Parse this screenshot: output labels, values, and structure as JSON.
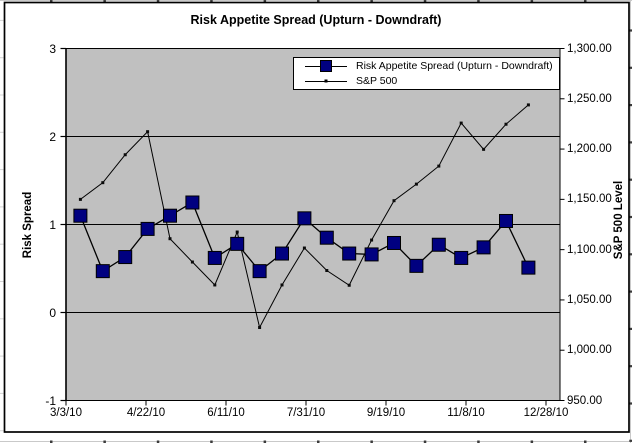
{
  "chart": {
    "title": "Risk Appetite Spread (Upturn - Downdraft)",
    "plot_bg_color": "#C0C0C0",
    "line_color": "#000000",
    "risk_marker_color": "#000080",
    "left_axis": {
      "title": "Risk Spread",
      "min": -1,
      "max": 3,
      "tick_labels": [
        "3",
        "2",
        "1",
        "0",
        "-1"
      ],
      "tick_values": [
        3,
        2,
        1,
        0,
        -1
      ]
    },
    "right_axis": {
      "title": "S&P 500 Level",
      "min": 950,
      "max": 1300,
      "tick_labels": [
        "1,300.00",
        "1,250.00",
        "1,200.00",
        "1,150.00",
        "1,100.00",
        "1,050.00",
        "1,000.00",
        "950.00"
      ],
      "tick_values": [
        1300,
        1250,
        1200,
        1150,
        1100,
        1050,
        1000,
        950
      ]
    },
    "x_axis": {
      "tick_labels": [
        "3/3/10",
        "4/22/10",
        "6/11/10",
        "7/31/10",
        "9/19/10",
        "11/8/10",
        "12/28/10"
      ]
    },
    "legend": {
      "items": [
        {
          "label": "Risk Appetite Spread (Upturn - Downdraft)",
          "marker": "navy-square-on-line"
        },
        {
          "label": "S&P 500",
          "marker": "thin-line-with-dot"
        }
      ]
    }
  },
  "chart_data": {
    "type": "line",
    "title": "Risk Appetite Spread (Upturn - Downdraft)",
    "x": [
      "3/12/10",
      "3/26/10",
      "4/9/10",
      "4/23/10",
      "5/7/10",
      "5/21/10",
      "6/4/10",
      "6/18/10",
      "7/2/10",
      "7/16/10",
      "7/30/10",
      "8/13/10",
      "8/27/10",
      "9/10/10",
      "9/24/10",
      "10/8/10",
      "10/22/10",
      "11/5/10",
      "11/19/10",
      "12/3/10",
      "12/17/10"
    ],
    "series": [
      {
        "name": "Risk Appetite Spread (Upturn - Downdraft)",
        "axis": "left",
        "marker": "square",
        "values": [
          1.1,
          0.47,
          0.63,
          0.95,
          1.1,
          1.25,
          0.62,
          0.78,
          0.47,
          0.67,
          1.07,
          0.85,
          0.67,
          0.66,
          0.79,
          0.53,
          0.77,
          0.62,
          0.74,
          1.04,
          0.51
        ]
      },
      {
        "name": "S&P 500",
        "axis": "right",
        "marker": "dot",
        "values": [
          1149.99,
          1166.59,
          1194.37,
          1217.28,
          1110.88,
          1087.69,
          1064.88,
          1117.51,
          1022.58,
          1064.88,
          1101.6,
          1079.25,
          1064.59,
          1109.55,
          1148.67,
          1165.15,
          1183.08,
          1225.85,
          1199.73,
          1224.71,
          1243.91
        ]
      }
    ],
    "xlabel": "",
    "ylabel_left": "Risk Spread",
    "ylabel_right": "S&P 500 Level",
    "ylim_left": [
      -1,
      3
    ],
    "ylim_right": [
      950,
      1300
    ],
    "xtick_labels": [
      "3/3/10",
      "4/22/10",
      "6/11/10",
      "7/31/10",
      "9/19/10",
      "11/8/10",
      "12/28/10"
    ],
    "grid": "horizontal-major",
    "legend_position": "inside-top-right"
  }
}
